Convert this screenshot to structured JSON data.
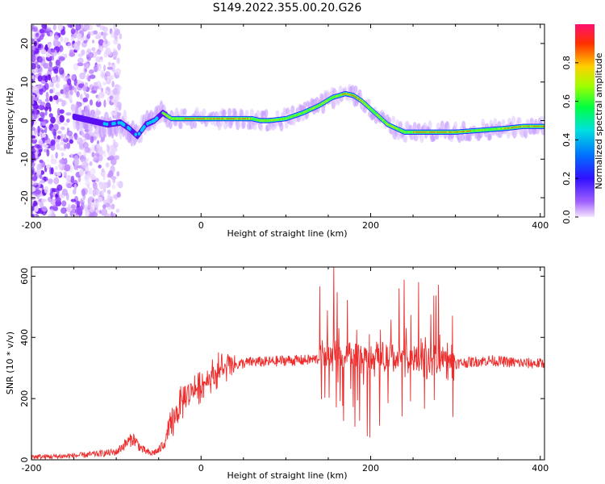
{
  "figure": {
    "title": "S149.2022.355.00.20.G26"
  },
  "chart_data": [
    {
      "type": "heatmap",
      "xlabel": "Height of straight line (km)",
      "ylabel": "Frequency (Hz)",
      "xlim": [
        -200,
        405
      ],
      "ylim": [
        -25,
        25
      ],
      "x_ticks": [
        "-200",
        "0",
        "200",
        "400"
      ],
      "y_ticks": [
        "-20",
        "-10",
        "0",
        "10",
        "20"
      ],
      "colorbar": {
        "label": "Normalized spectral amplitude",
        "range": [
          0,
          1
        ],
        "ticks": [
          "0.0",
          "0.2",
          "0.4",
          "0.6",
          "0.8"
        ],
        "colors": [
          "#f0e0ff",
          "#8a3cff",
          "#3010ff",
          "#0060ff",
          "#00d0ff",
          "#00ff70",
          "#a0ff00",
          "#ffd000",
          "#ff4000",
          "#ff1070"
        ]
      },
      "ridge": {
        "x": [
          -150,
          -130,
          -110,
          -95,
          -85,
          -75,
          -65,
          -55,
          -45,
          -35,
          -20,
          0,
          20,
          40,
          60,
          70,
          80,
          100,
          120,
          140,
          155,
          170,
          180,
          190,
          200,
          210,
          220,
          230,
          240,
          250,
          270,
          300,
          330,
          360,
          380,
          405
        ],
        "y": [
          1,
          0,
          -1,
          -0.5,
          -2,
          -4,
          -1,
          0,
          2,
          0.5,
          0.5,
          0.5,
          0.5,
          0.5,
          0.5,
          0,
          0,
          0.5,
          2,
          4,
          6,
          7,
          6.5,
          5,
          3,
          1,
          -1,
          -2,
          -3,
          -3,
          -3,
          -3,
          -2.5,
          -2,
          -1.5,
          -1.5
        ]
      },
      "noise_region": {
        "x": [
          -200,
          -95
        ],
        "y": [
          -25,
          25
        ]
      }
    },
    {
      "type": "line",
      "xlabel": "Height of straight line (km)",
      "ylabel": "SNR (10 * v/v)",
      "xlim": [
        -200,
        405
      ],
      "ylim": [
        0,
        630
      ],
      "x_ticks": [
        "-200",
        "0",
        "200",
        "400"
      ],
      "y_ticks": [
        "0",
        "200",
        "400",
        "600"
      ],
      "series": [
        {
          "color": "#ee2c2c",
          "x": [
            -200,
            -180,
            -160,
            -140,
            -120,
            -100,
            -90,
            -80,
            -70,
            -60,
            -50,
            -40,
            -30,
            -20,
            -10,
            0,
            10,
            20,
            30,
            40,
            60,
            80,
            100,
            120,
            140,
            160,
            170,
            180,
            190,
            200,
            210,
            220,
            230,
            240,
            250,
            260,
            270,
            280,
            290,
            300,
            320,
            340,
            360,
            380,
            405
          ],
          "y": [
            10,
            10,
            12,
            15,
            20,
            25,
            50,
            70,
            35,
            20,
            30,
            70,
            150,
            200,
            230,
            240,
            270,
            290,
            300,
            310,
            320,
            320,
            325,
            325,
            330,
            340,
            340,
            340,
            340,
            340,
            330,
            330,
            335,
            330,
            320,
            320,
            320,
            330,
            320,
            315,
            320,
            325,
            320,
            315,
            315
          ]
        }
      ]
    }
  ]
}
